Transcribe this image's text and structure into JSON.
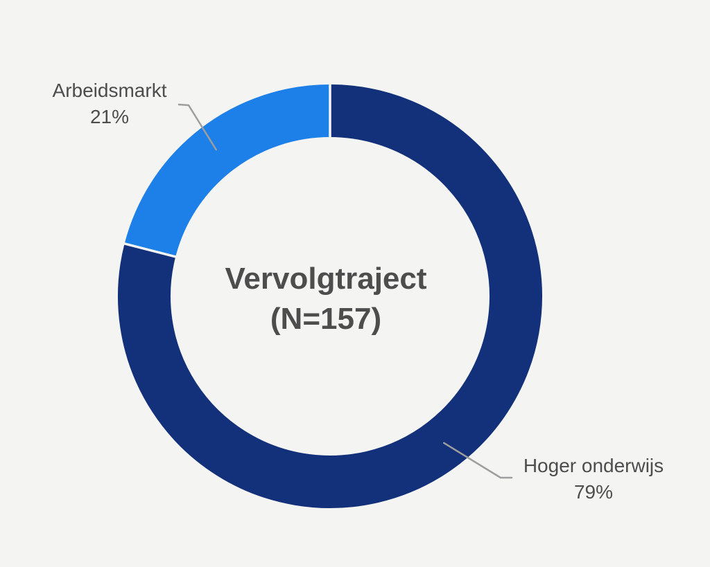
{
  "page": {
    "background_color": "#f4f4f2"
  },
  "chart_data": {
    "type": "pie",
    "variant": "donut",
    "title": "Vervolgtraject",
    "subtitle": "(N=157)",
    "sample_size": 157,
    "start_angle_deg": 0,
    "direction": "clockwise",
    "legend_position": "outside-callout-labels",
    "series": [
      {
        "label": "Hoger onderwijs",
        "value": 79,
        "display": "79%",
        "color": "#13317a"
      },
      {
        "label": "Arbeidsmarkt",
        "value": 21,
        "display": "21%",
        "color": "#1d80e8"
      }
    ],
    "center_label": {
      "line1": "Vervolgtraject",
      "line2": "(N=157)"
    },
    "leader_line_color": "#9e9e9e",
    "label_text_color": "#4d4d4d",
    "segment_gap_color": "#f4f4f2"
  }
}
